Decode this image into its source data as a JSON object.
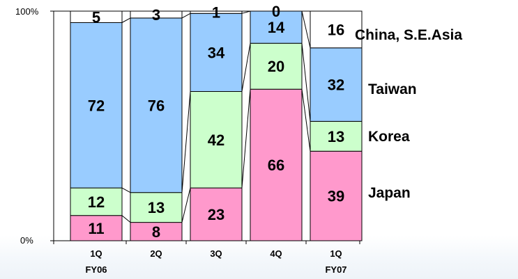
{
  "chart_data": {
    "type": "bar",
    "stacked": true,
    "percent_stacked": true,
    "categories": [
      [
        "1Q",
        "FY06"
      ],
      [
        "2Q",
        ""
      ],
      [
        "3Q",
        ""
      ],
      [
        "4Q",
        ""
      ],
      [
        "1Q",
        "FY07"
      ]
    ],
    "series": [
      {
        "name": "Japan",
        "values": [
          11,
          8,
          23,
          66,
          39
        ],
        "color": "#ff99cc"
      },
      {
        "name": "Korea",
        "values": [
          12,
          13,
          42,
          20,
          13
        ],
        "color": "#ccffcc"
      },
      {
        "name": "Taiwan",
        "values": [
          72,
          76,
          34,
          14,
          32
        ],
        "color": "#99ccff"
      },
      {
        "name": "China, S.E.Asia",
        "values": [
          5,
          3,
          1,
          0,
          16
        ],
        "color": "#ffffff"
      }
    ],
    "y_ticks": [
      "0%",
      "100%"
    ],
    "ylim": [
      0,
      100
    ],
    "legend_position": "right",
    "series_lines": true,
    "grid": false
  }
}
